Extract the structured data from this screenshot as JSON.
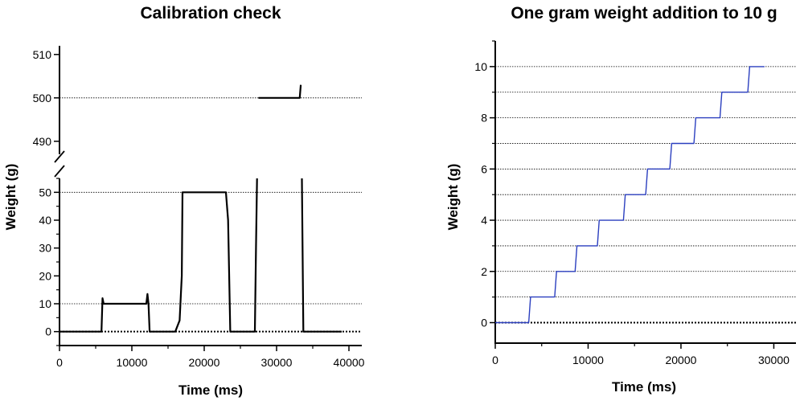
{
  "chart_data": [
    {
      "type": "line",
      "title": "Calibration check",
      "xlabel": "Time (ms)",
      "ylabel": "Weight (g)",
      "xlim": [
        0,
        40000
      ],
      "x_ticks": [
        0,
        10000,
        20000,
        30000,
        40000
      ],
      "y_axis_break": true,
      "ylim_lower": [
        -5,
        55
      ],
      "ylim_upper": [
        487,
        512
      ],
      "y_ticks_lower": [
        0,
        10,
        20,
        30,
        40,
        50
      ],
      "y_ticks_upper": [
        490,
        500,
        510
      ],
      "reference_lines": [
        0,
        10,
        50,
        500
      ],
      "grid": false,
      "line_color": "#000000",
      "series": [
        {
          "x": [
            0,
            5800,
            5950,
            6100,
            6300,
            12000,
            12150,
            12300,
            12450,
            16000,
            16600,
            16900,
            17000,
            17300,
            23000,
            23300,
            23600,
            27000,
            27150,
            27300,
            27500,
            27600,
            33000,
            33200,
            33350,
            33500,
            33700,
            39000
          ],
          "y": [
            0,
            0,
            12,
            10,
            10,
            10,
            13.5,
            10,
            0,
            0,
            4,
            20,
            50,
            50,
            50,
            40,
            0,
            0,
            30,
            55,
            500,
            500,
            500,
            500,
            503,
            55,
            0,
            0
          ]
        }
      ]
    },
    {
      "type": "line",
      "title": "One gram weight addition to 10 g",
      "xlabel": "Time (ms)",
      "ylabel": "Weight (g)",
      "xlim": [
        0,
        31000
      ],
      "ylim": [
        -0.8,
        11
      ],
      "x_ticks": [
        0,
        10000,
        20000,
        30000
      ],
      "y_ticks": [
        0,
        2,
        4,
        6,
        8,
        10
      ],
      "reference_lines": [
        0,
        1,
        2,
        3,
        4,
        5,
        6,
        7,
        8,
        9,
        10
      ],
      "grid": false,
      "line_color": "#2b3fbf",
      "series": [
        {
          "x": [
            0,
            3600,
            3800,
            6400,
            6600,
            8600,
            8800,
            11000,
            11200,
            13800,
            14000,
            16200,
            16400,
            18800,
            19000,
            21400,
            21600,
            24200,
            24400,
            27200,
            27400,
            29000
          ],
          "y": [
            0,
            0,
            1,
            1,
            2,
            2,
            3,
            3,
            4,
            4,
            5,
            5,
            6,
            6,
            7,
            7,
            8,
            8,
            9,
            9,
            10,
            10
          ]
        }
      ]
    }
  ]
}
